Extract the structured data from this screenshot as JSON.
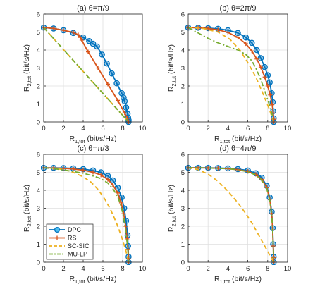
{
  "figure": {
    "legend": [
      "DPC",
      "RS",
      "SC-SIC",
      "MU-LP"
    ],
    "legend_location": "lower-left of panel (c)"
  },
  "chart_data": [
    {
      "type": "line",
      "title": "(a) θ=π/9",
      "xlabel": {
        "main": "R",
        "sub": "1,tot",
        "unit": " (bit/s/Hz)"
      },
      "ylabel": {
        "main": "R",
        "sub": "2,tot",
        "unit": " (bit/s/Hz)"
      },
      "xlim": [
        0,
        10
      ],
      "ylim": [
        0,
        6
      ],
      "xticks": [
        "0",
        "2",
        "4",
        "6",
        "8",
        "10"
      ],
      "yticks": [
        "0",
        "1",
        "2",
        "3",
        "4",
        "5",
        "6"
      ],
      "grid": true,
      "series": [
        {
          "name": "DPC",
          "color": "#0072BD",
          "style": "solid",
          "marker": "circle",
          "x": [
            0,
            1,
            2,
            3,
            4,
            4.6,
            5.0,
            5.4,
            5.9,
            6.4,
            6.9,
            7.4,
            7.9,
            8.1,
            8.2,
            8.35,
            8.5,
            8.55,
            8.6,
            8.6
          ],
          "y": [
            5.25,
            5.2,
            5.1,
            4.95,
            4.7,
            4.5,
            4.35,
            4.2,
            3.75,
            3.25,
            2.7,
            2.15,
            1.6,
            1.35,
            1.15,
            0.8,
            0.45,
            0.25,
            0.1,
            0
          ]
        },
        {
          "name": "RS",
          "color": "#D95319",
          "style": "solid",
          "marker": "plus",
          "x": [
            0,
            1,
            2,
            3,
            3.5,
            3.7,
            3.85,
            4.5,
            5.5,
            6.5,
            7.5,
            8.2,
            8.5,
            8.6
          ],
          "y": [
            5.25,
            5.2,
            5.1,
            4.98,
            4.85,
            4.7,
            4.55,
            3.9,
            3.0,
            2.1,
            1.2,
            0.5,
            0.2,
            0
          ]
        },
        {
          "name": "SC-SIC",
          "color": "#EDB120",
          "style": "dashed",
          "marker": "none",
          "x": [
            0,
            8.6
          ],
          "y": [
            5.25,
            0
          ]
        },
        {
          "name": "MU-LP",
          "color": "#77AC30",
          "style": "dashdot",
          "marker": "none",
          "x": [
            0,
            8.6
          ],
          "y": [
            5.25,
            0
          ]
        }
      ]
    },
    {
      "type": "line",
      "title": "(b) θ=2π/9",
      "xlabel": {
        "main": "R",
        "sub": "1,tot",
        "unit": " (bit/s/Hz)"
      },
      "ylabel": {
        "main": "R",
        "sub": "2,tot",
        "unit": " (bit/s/Hz)"
      },
      "xlim": [
        0,
        10
      ],
      "ylim": [
        0,
        6
      ],
      "xticks": [
        "0",
        "2",
        "4",
        "6",
        "8",
        "10"
      ],
      "yticks": [
        "0",
        "1",
        "2",
        "3",
        "4",
        "5",
        "6"
      ],
      "grid": true,
      "series": [
        {
          "name": "DPC",
          "color": "#0072BD",
          "style": "solid",
          "marker": "circle",
          "x": [
            0,
            1,
            2,
            3,
            4,
            5,
            5.8,
            6.4,
            6.9,
            7.3,
            7.7,
            8.0,
            8.2,
            8.4,
            8.5,
            8.55,
            8.6,
            8.6
          ],
          "y": [
            5.25,
            5.24,
            5.22,
            5.18,
            5.1,
            4.95,
            4.7,
            4.4,
            4.0,
            3.55,
            3.05,
            2.6,
            2.2,
            1.6,
            1.1,
            0.6,
            0.2,
            0
          ]
        },
        {
          "name": "RS",
          "color": "#D95319",
          "style": "solid",
          "marker": "plus",
          "x": [
            0,
            1,
            2,
            3,
            4,
            5,
            5.8,
            6.4,
            6.9,
            7.3,
            7.7,
            8.0,
            8.25,
            8.45,
            8.55,
            8.6,
            8.6
          ],
          "y": [
            5.25,
            5.24,
            5.2,
            5.12,
            4.98,
            4.7,
            4.35,
            3.95,
            3.5,
            3.05,
            2.5,
            2.0,
            1.5,
            0.95,
            0.5,
            0.15,
            0
          ]
        },
        {
          "name": "SC-SIC",
          "color": "#EDB120",
          "style": "dashed",
          "marker": "none",
          "x": [
            0,
            1.5,
            3.0,
            4.2,
            5.2,
            6.0,
            6.8,
            7.5,
            8.1,
            8.6
          ],
          "y": [
            5.25,
            5.2,
            5.0,
            4.6,
            4.0,
            3.3,
            2.5,
            1.6,
            0.8,
            0
          ]
        },
        {
          "name": "MU-LP",
          "color": "#77AC30",
          "style": "dashdot",
          "marker": "none",
          "x": [
            0,
            1.0,
            2.0,
            3.0,
            4.0,
            5.0,
            5.8,
            6.4,
            6.8,
            7.2,
            7.6,
            7.9,
            8.2,
            8.45,
            8.6
          ],
          "y": [
            5.25,
            4.95,
            4.65,
            4.4,
            4.2,
            4.0,
            3.75,
            3.4,
            3.0,
            2.5,
            1.9,
            1.4,
            0.9,
            0.4,
            0
          ]
        }
      ]
    },
    {
      "type": "line",
      "title": "(c) θ=π/3",
      "xlabel": {
        "main": "R",
        "sub": "1,tot",
        "unit": " (bit/s/Hz)"
      },
      "ylabel": {
        "main": "R",
        "sub": "2,tot",
        "unit": " (bit/s/Hz)"
      },
      "xlim": [
        0,
        10
      ],
      "ylim": [
        0,
        6
      ],
      "xticks": [
        "0",
        "2",
        "4",
        "6",
        "8",
        "10"
      ],
      "yticks": [
        "0",
        "1",
        "2",
        "3",
        "4",
        "5",
        "6"
      ],
      "grid": true,
      "series": [
        {
          "name": "DPC",
          "color": "#0072BD",
          "style": "solid",
          "marker": "circle",
          "x": [
            0,
            1,
            2,
            3,
            4,
            5,
            5.8,
            6.5,
            7.0,
            7.5,
            7.9,
            8.15,
            8.35,
            8.5,
            8.55,
            8.6,
            8.6
          ],
          "y": [
            5.25,
            5.25,
            5.24,
            5.22,
            5.18,
            5.1,
            5.0,
            4.8,
            4.55,
            4.15,
            3.6,
            3.0,
            2.3,
            1.5,
            0.9,
            0.3,
            0
          ]
        },
        {
          "name": "RS",
          "color": "#D95319",
          "style": "solid",
          "marker": "plus",
          "x": [
            0,
            1,
            2,
            3,
            4,
            5,
            5.8,
            6.5,
            7.0,
            7.5,
            7.85,
            8.1,
            8.3,
            8.45,
            8.55,
            8.6,
            8.6
          ],
          "y": [
            5.25,
            5.24,
            5.22,
            5.18,
            5.12,
            5.0,
            4.85,
            4.6,
            4.3,
            3.85,
            3.3,
            2.7,
            2.0,
            1.3,
            0.7,
            0.2,
            0
          ]
        },
        {
          "name": "SC-SIC",
          "color": "#EDB120",
          "style": "dashed",
          "marker": "none",
          "x": [
            0,
            1.0,
            2.0,
            3.0,
            4.0,
            4.8,
            5.5,
            6.2,
            6.8,
            7.4,
            7.9,
            8.3,
            8.6
          ],
          "y": [
            5.25,
            5.23,
            5.15,
            5.0,
            4.75,
            4.45,
            4.05,
            3.5,
            2.9,
            2.15,
            1.4,
            0.7,
            0
          ]
        },
        {
          "name": "MU-LP",
          "color": "#77AC30",
          "style": "dashdot",
          "marker": "none",
          "x": [
            0,
            1,
            2,
            3,
            4,
            5,
            5.8,
            6.5,
            7.0,
            7.5,
            7.85,
            8.1,
            8.3,
            8.45,
            8.55,
            8.6
          ],
          "y": [
            5.25,
            5.2,
            5.13,
            5.05,
            4.95,
            4.8,
            4.65,
            4.4,
            4.1,
            3.65,
            3.1,
            2.5,
            1.8,
            1.1,
            0.5,
            0
          ]
        }
      ]
    },
    {
      "type": "line",
      "title": "(d) θ=4π/9",
      "xlabel": {
        "main": "R",
        "sub": "1,tot",
        "unit": " (bit/s/Hz)"
      },
      "ylabel": {
        "main": "R",
        "sub": "2,tot",
        "unit": " (bit/s/Hz)"
      },
      "xlim": [
        0,
        10
      ],
      "ylim": [
        0,
        6
      ],
      "xticks": [
        "0",
        "2",
        "4",
        "6",
        "8",
        "10"
      ],
      "yticks": [
        "0",
        "1",
        "2",
        "3",
        "4",
        "5",
        "6"
      ],
      "grid": true,
      "series": [
        {
          "name": "DPC",
          "color": "#0072BD",
          "style": "solid",
          "marker": "circle",
          "x": [
            0,
            1,
            2,
            3,
            4,
            5,
            6,
            6.8,
            7.4,
            7.9,
            8.2,
            8.4,
            8.5,
            8.55,
            8.6,
            8.6
          ],
          "y": [
            5.25,
            5.25,
            5.25,
            5.24,
            5.22,
            5.18,
            5.1,
            4.95,
            4.7,
            4.25,
            3.6,
            2.8,
            1.9,
            1.0,
            0.3,
            0
          ]
        },
        {
          "name": "RS",
          "color": "#D95319",
          "style": "solid",
          "marker": "plus",
          "x": [
            0,
            1,
            2,
            3,
            4,
            5,
            6,
            6.8,
            7.4,
            7.9,
            8.2,
            8.4,
            8.5,
            8.55,
            8.6,
            8.6
          ],
          "y": [
            5.25,
            5.25,
            5.24,
            5.23,
            5.2,
            5.15,
            5.05,
            4.88,
            4.6,
            4.15,
            3.5,
            2.7,
            1.8,
            0.9,
            0.25,
            0
          ]
        },
        {
          "name": "SC-SIC",
          "color": "#EDB120",
          "style": "dashed",
          "marker": "none",
          "x": [
            0,
            1.0,
            2.0,
            3.0,
            4.0,
            5.0,
            5.8,
            6.5,
            7.1,
            7.6,
            8.0,
            8.3,
            8.6
          ],
          "y": [
            5.25,
            5.15,
            4.9,
            4.5,
            3.95,
            3.3,
            2.7,
            2.1,
            1.5,
            1.0,
            0.6,
            0.3,
            0
          ]
        },
        {
          "name": "MU-LP",
          "color": "#77AC30",
          "style": "dashdot",
          "marker": "none",
          "x": [
            0,
            1,
            2,
            3,
            4,
            5,
            6,
            6.8,
            7.4,
            7.9,
            8.2,
            8.4,
            8.5,
            8.55,
            8.6
          ],
          "y": [
            5.25,
            5.25,
            5.24,
            5.22,
            5.2,
            5.14,
            5.03,
            4.85,
            4.55,
            4.1,
            3.45,
            2.65,
            1.75,
            0.9,
            0
          ]
        }
      ]
    }
  ]
}
